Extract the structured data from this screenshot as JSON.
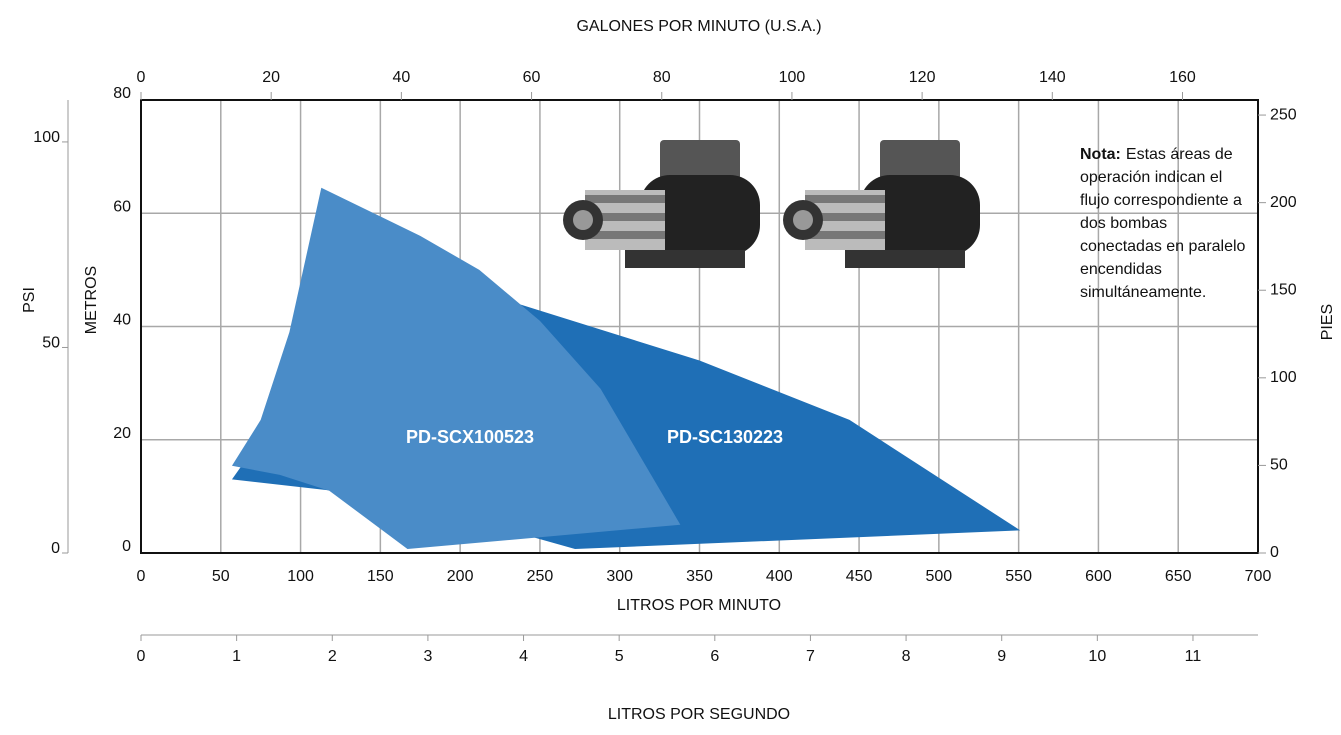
{
  "chart_data": {
    "type": "area",
    "xlabel": "LITROS POR MINUTO",
    "ylabel": "METROS",
    "xlim": [
      0,
      700
    ],
    "xticks": [
      0,
      50,
      100,
      150,
      200,
      250,
      300,
      350,
      400,
      450,
      500,
      550,
      600,
      650,
      700
    ],
    "ylim": [
      0,
      80
    ],
    "yticks": [
      0,
      20,
      40,
      60,
      80
    ],
    "grid": true,
    "series": [
      {
        "name": "PD-SC130223",
        "color": "#1f6fb6",
        "x": [
          57,
          150,
          225,
          350,
          444,
          551,
          272,
          180,
          120
        ],
        "values": [
          13,
          50,
          45,
          34,
          23.5,
          4,
          0.7,
          8,
          11
        ]
      },
      {
        "name": "PD-SCX100523",
        "color": "#4a8cc8",
        "x": [
          57,
          75,
          93,
          113,
          175,
          212,
          250,
          288,
          338,
          167,
          118,
          87
        ],
        "values": [
          15.4,
          23.5,
          39,
          64.5,
          56,
          50,
          41,
          29,
          5,
          0.7,
          11,
          13.8
        ]
      }
    ],
    "top_axis": {
      "label": "GALONES POR MINUTO (U.S.A.)",
      "lim": [
        0,
        171.6
      ],
      "ticks": [
        0,
        20,
        40,
        60,
        80,
        100,
        120,
        140,
        160
      ]
    },
    "right_axis": {
      "label": "PIES",
      "lim": [
        0,
        258.6
      ],
      "ticks": [
        0,
        50,
        100,
        150,
        200,
        250
      ]
    },
    "psi_axis": {
      "label": "PSI",
      "lim": [
        0,
        110.2
      ],
      "ticks": [
        0,
        50,
        100
      ]
    },
    "lps_axis": {
      "label": "LITROS POR SEGUNDO",
      "lim": [
        0,
        11.68
      ],
      "ticks": [
        0,
        1,
        2,
        3,
        4,
        5,
        6,
        7,
        8,
        9,
        10,
        11
      ]
    },
    "note": {
      "label": "Nota:",
      "lines": [
        "Estas áreas de",
        "operación indican el",
        "flujo correspondiente a",
        "dos bombas",
        "conectadas en paralelo",
        "encendidas",
        "simultáneamente."
      ]
    }
  }
}
